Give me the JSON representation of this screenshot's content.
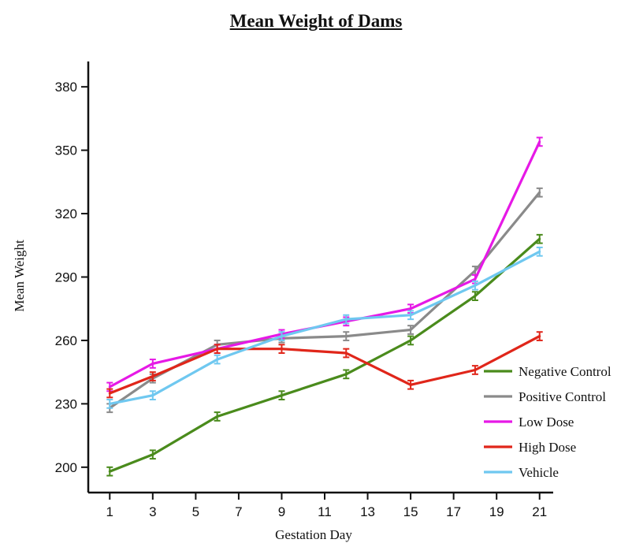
{
  "chart_data": {
    "type": "line",
    "title": "Mean Weight of Dams",
    "xlabel": "Gestation Day",
    "ylabel": "Mean Weight",
    "x_ticks": [
      1,
      3,
      5,
      7,
      9,
      11,
      13,
      15,
      17,
      19,
      21
    ],
    "y_ticks": [
      200,
      230,
      260,
      290,
      320,
      350,
      380
    ],
    "xlim": [
      0,
      22
    ],
    "ylim": [
      188,
      392
    ],
    "grid": false,
    "legend_position": "bottom-right",
    "x": [
      1,
      3,
      6,
      9,
      12,
      15,
      18,
      21
    ],
    "series": [
      {
        "name": "Negative Control",
        "color": "#4a8b1c",
        "values": [
          198,
          206,
          224,
          234,
          244,
          260,
          281,
          308
        ],
        "errors": [
          2,
          2,
          2,
          2,
          2,
          2,
          2,
          2
        ]
      },
      {
        "name": "Positive Control",
        "color": "#8a8a8a",
        "values": [
          228,
          242,
          258,
          261,
          262,
          265,
          293,
          330
        ],
        "errors": [
          2,
          2,
          2,
          2,
          2,
          2,
          2,
          2
        ]
      },
      {
        "name": "Low Dose",
        "color": "#e619e6",
        "values": [
          238,
          249,
          256,
          263,
          269,
          275,
          289,
          354
        ],
        "errors": [
          2,
          2,
          2,
          2,
          2,
          2,
          2,
          2
        ]
      },
      {
        "name": "High Dose",
        "color": "#e0261a",
        "values": [
          235,
          243,
          256,
          256,
          254,
          239,
          246,
          262
        ],
        "errors": [
          2,
          2,
          2,
          2,
          2,
          2,
          2,
          2
        ]
      },
      {
        "name": "Vehicle",
        "color": "#6fc8f0",
        "values": [
          230,
          234,
          251,
          262,
          270,
          272,
          286,
          302
        ],
        "errors": [
          2,
          2,
          2,
          2,
          2,
          2,
          2,
          2
        ]
      }
    ]
  }
}
